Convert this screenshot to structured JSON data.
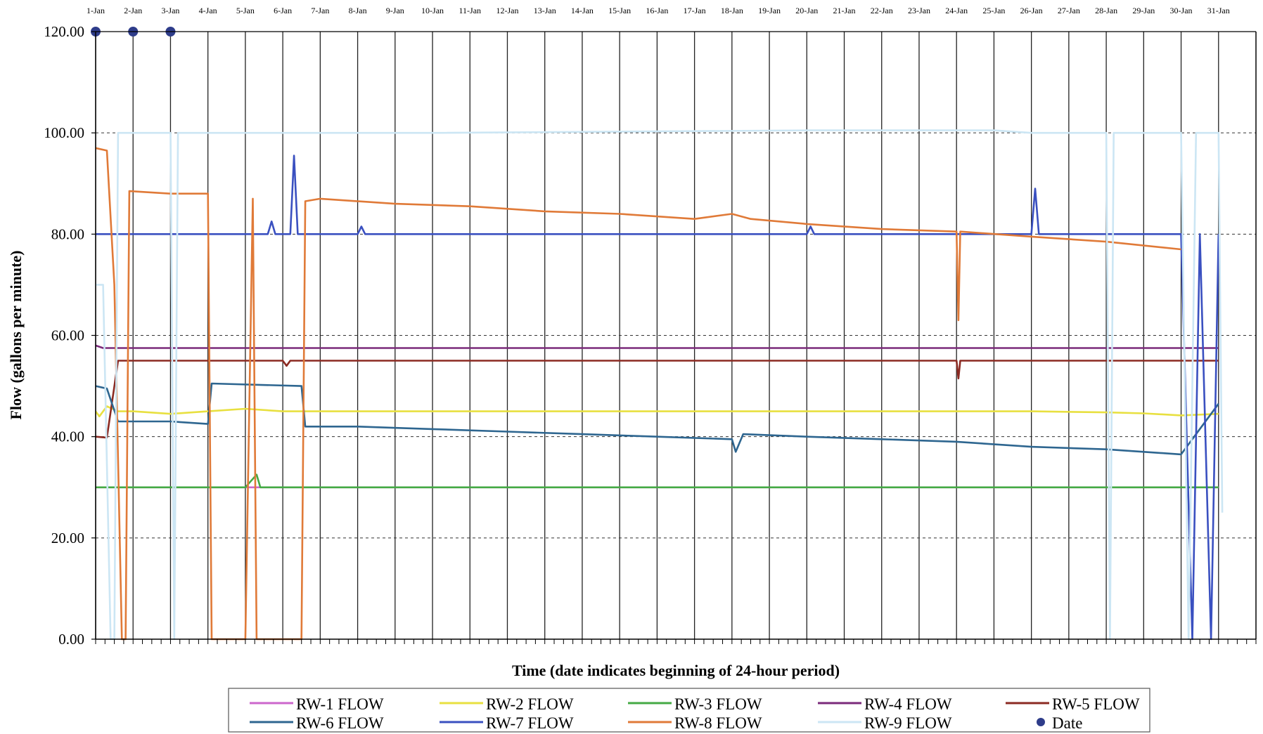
{
  "chart_data": {
    "type": "line",
    "xlabel": "Time (date indicates beginning of 24-hour period)",
    "ylabel": "Flow (gallons per minute)",
    "ylim": [
      0,
      120
    ],
    "y_ticks": [
      "0.00",
      "20.00",
      "40.00",
      "60.00",
      "80.00",
      "100.00",
      "120.00"
    ],
    "x_ticks": [
      "1-Jan",
      "2-Jan",
      "3-Jan",
      "4-Jan",
      "5-Jan",
      "6-Jan",
      "7-Jan",
      "8-Jan",
      "9-Jan",
      "10-Jan",
      "11-Jan",
      "12-Jan",
      "13-Jan",
      "14-Jan",
      "15-Jan",
      "16-Jan",
      "17-Jan",
      "18-Jan",
      "19-Jan",
      "20-Jan",
      "21-Jan",
      "22-Jan",
      "23-Jan",
      "24-Jan",
      "25-Jan",
      "26-Jan",
      "27-Jan",
      "28-Jan",
      "29-Jan",
      "30-Jan",
      "31-Jan"
    ],
    "x_unit": "day of January",
    "grid": "vertical lines at each date; dashed horizontal lines at y ticks",
    "legend_position": "bottom",
    "series": [
      {
        "name": "RW-1 FLOW",
        "color": "#cc66cc",
        "points": [
          [
            1,
            30
          ],
          [
            31,
            30
          ]
        ]
      },
      {
        "name": "RW-2 FLOW",
        "color": "#e8e040",
        "points": [
          [
            1,
            45
          ],
          [
            1.1,
            44
          ],
          [
            1.3,
            46
          ],
          [
            1.6,
            45
          ],
          [
            2,
            45
          ],
          [
            3,
            44.5
          ],
          [
            4,
            45
          ],
          [
            5,
            45.5
          ],
          [
            6,
            45
          ],
          [
            8,
            45
          ],
          [
            10,
            45
          ],
          [
            12,
            45
          ],
          [
            14,
            45
          ],
          [
            16,
            45
          ],
          [
            18,
            45
          ],
          [
            20,
            45
          ],
          [
            22,
            45
          ],
          [
            24,
            45
          ],
          [
            26,
            45
          ],
          [
            28,
            44.8
          ],
          [
            29,
            44.6
          ],
          [
            30,
            44.2
          ],
          [
            31,
            44.5
          ]
        ]
      },
      {
        "name": "RW-3 FLOW",
        "color": "#44aa44",
        "points": [
          [
            1,
            30
          ],
          [
            5,
            30
          ],
          [
            5.3,
            32.5
          ],
          [
            5.4,
            30
          ],
          [
            10,
            30
          ],
          [
            15,
            30
          ],
          [
            20,
            30
          ],
          [
            25,
            30
          ],
          [
            30,
            30
          ],
          [
            31,
            30
          ]
        ]
      },
      {
        "name": "RW-4 FLOW",
        "color": "#7a2a7a",
        "points": [
          [
            1,
            58
          ],
          [
            1.2,
            57.5
          ],
          [
            31,
            57.5
          ]
        ]
      },
      {
        "name": "RW-5 FLOW",
        "color": "#8b2a22",
        "points": [
          [
            1,
            40
          ],
          [
            1.3,
            39.8
          ],
          [
            1.6,
            55
          ],
          [
            6,
            55
          ],
          [
            6.1,
            54
          ],
          [
            6.2,
            55
          ],
          [
            24,
            55
          ],
          [
            24.05,
            51.5
          ],
          [
            24.1,
            55
          ],
          [
            31,
            55
          ]
        ]
      },
      {
        "name": "RW-6 FLOW",
        "color": "#2e6690",
        "points": [
          [
            1,
            50
          ],
          [
            1.3,
            49.5
          ],
          [
            1.6,
            43
          ],
          [
            3,
            43
          ],
          [
            4,
            42.5
          ],
          [
            4.1,
            50.5
          ],
          [
            6.5,
            50
          ],
          [
            6.6,
            42
          ],
          [
            8,
            42
          ],
          [
            10,
            41.5
          ],
          [
            12,
            41
          ],
          [
            14,
            40.5
          ],
          [
            16,
            40
          ],
          [
            18,
            39.5
          ],
          [
            18.1,
            37
          ],
          [
            18.3,
            40.5
          ],
          [
            20,
            40
          ],
          [
            22,
            39.5
          ],
          [
            24,
            39
          ],
          [
            26,
            38
          ],
          [
            28,
            37.5
          ],
          [
            29,
            37
          ],
          [
            30,
            36.5
          ],
          [
            31,
            46.5
          ]
        ]
      },
      {
        "name": "RW-7 FLOW",
        "color": "#3a50c0",
        "points": [
          [
            1,
            80
          ],
          [
            5.6,
            80
          ],
          [
            5.7,
            82.5
          ],
          [
            5.8,
            80
          ],
          [
            6.2,
            80
          ],
          [
            6.3,
            95.5
          ],
          [
            6.4,
            80
          ],
          [
            8,
            80
          ],
          [
            8.1,
            81.5
          ],
          [
            8.2,
            80
          ],
          [
            20,
            80
          ],
          [
            20.1,
            81.5
          ],
          [
            20.2,
            80
          ],
          [
            26,
            80
          ],
          [
            26.1,
            89
          ],
          [
            26.2,
            80
          ],
          [
            30,
            80
          ],
          [
            30.3,
            0
          ],
          [
            30.5,
            80
          ],
          [
            30.8,
            0
          ],
          [
            31,
            80
          ]
        ]
      },
      {
        "name": "RW-8 FLOW",
        "color": "#e07a38",
        "points": [
          [
            1,
            97
          ],
          [
            1.3,
            96.5
          ],
          [
            1.5,
            70
          ],
          [
            1.7,
            0
          ],
          [
            1.8,
            0
          ],
          [
            1.9,
            88.5
          ],
          [
            3,
            88
          ],
          [
            4,
            88
          ],
          [
            4.1,
            0
          ],
          [
            5,
            0
          ],
          [
            5.2,
            87
          ],
          [
            5.3,
            0
          ],
          [
            6.5,
            0
          ],
          [
            6.6,
            86.5
          ],
          [
            7,
            87
          ],
          [
            9,
            86
          ],
          [
            11,
            85.5
          ],
          [
            13,
            84.5
          ],
          [
            15,
            84
          ],
          [
            17,
            83
          ],
          [
            18,
            84
          ],
          [
            18.5,
            83
          ],
          [
            20,
            82
          ],
          [
            22,
            81
          ],
          [
            24,
            80.5
          ],
          [
            24.05,
            63
          ],
          [
            24.1,
            80.5
          ],
          [
            26,
            79.5
          ],
          [
            28,
            78.5
          ],
          [
            30,
            77
          ]
        ]
      },
      {
        "name": "RW-9 FLOW",
        "color": "#cce6f4",
        "points": [
          [
            1,
            70
          ],
          [
            1.2,
            70
          ],
          [
            1.4,
            0
          ],
          [
            1.5,
            0
          ],
          [
            1.6,
            100
          ],
          [
            3,
            100
          ],
          [
            3.1,
            0
          ],
          [
            3.2,
            100
          ],
          [
            10,
            100
          ],
          [
            20,
            100.5
          ],
          [
            25,
            100.5
          ],
          [
            26,
            100
          ],
          [
            28,
            100
          ],
          [
            28.1,
            0
          ],
          [
            28.2,
            100
          ],
          [
            30,
            100
          ],
          [
            30.2,
            0
          ],
          [
            30.4,
            100
          ],
          [
            31,
            100
          ],
          [
            31.1,
            25
          ]
        ]
      }
    ],
    "date_markers": {
      "name": "Date",
      "color": "#2e3c8a",
      "x": [
        1,
        2,
        3
      ]
    }
  },
  "legend": {
    "items": [
      {
        "label": "RW-1 FLOW",
        "color": "#cc66cc",
        "kind": "line"
      },
      {
        "label": "RW-2 FLOW",
        "color": "#e8e040",
        "kind": "line"
      },
      {
        "label": "RW-3 FLOW",
        "color": "#44aa44",
        "kind": "line"
      },
      {
        "label": "RW-4 FLOW",
        "color": "#7a2a7a",
        "kind": "line"
      },
      {
        "label": "RW-5 FLOW",
        "color": "#8b2a22",
        "kind": "line"
      },
      {
        "label": "RW-6 FLOW",
        "color": "#2e6690",
        "kind": "line"
      },
      {
        "label": "RW-7 FLOW",
        "color": "#3a50c0",
        "kind": "line"
      },
      {
        "label": "RW-8 FLOW",
        "color": "#e07a38",
        "kind": "line"
      },
      {
        "label": "RW-9 FLOW",
        "color": "#cce6f4",
        "kind": "line"
      },
      {
        "label": "Date",
        "color": "#2e3c8a",
        "kind": "marker"
      }
    ]
  }
}
